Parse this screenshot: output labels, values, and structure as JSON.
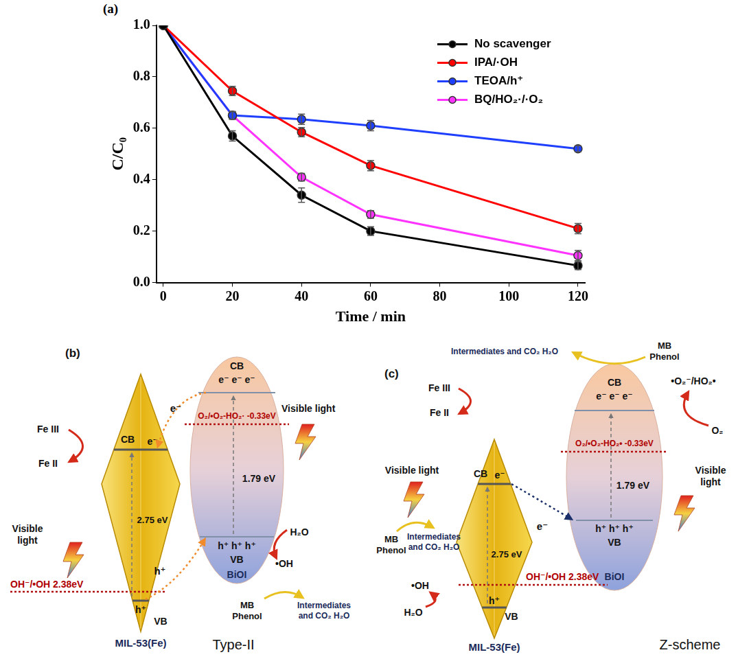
{
  "chart_data": {
    "type": "line",
    "title": "(a)",
    "x_label": "Time / min",
    "y_label": "C/C₀",
    "x": [
      0,
      20,
      40,
      60,
      120
    ],
    "series": [
      {
        "name": "No scavenger",
        "color": "#000000",
        "marker": "circle",
        "values": [
          1.0,
          0.57,
          0.34,
          0.2,
          0.066
        ],
        "errors": [
          0,
          0.02,
          0.028,
          0.017,
          0.016
        ]
      },
      {
        "name": "IPA/·OH",
        "color": "#ff0000",
        "marker": "circle",
        "values": [
          1.0,
          0.745,
          0.585,
          0.455,
          0.21
        ],
        "errors": [
          0,
          0.018,
          0.018,
          0.02,
          0.02
        ]
      },
      {
        "name": "TEOA/h⁺",
        "color": "#1f3fff",
        "marker": "circle",
        "values": [
          1.0,
          0.65,
          0.635,
          0.61,
          0.52
        ],
        "errors": [
          0,
          0.015,
          0.02,
          0.02,
          0.012
        ]
      },
      {
        "name": "BQ/HO₂·/·O₂",
        "color": "#ff33ff",
        "marker": "circle",
        "values": [
          1.0,
          0.65,
          0.41,
          0.265,
          0.105
        ],
        "errors": [
          0,
          0.015,
          0.015,
          0.015,
          0.02
        ]
      }
    ],
    "xlim": [
      -2,
      122
    ],
    "xticks": [
      0,
      20,
      40,
      60,
      80,
      100,
      120
    ],
    "ylim": [
      0,
      1.0
    ],
    "yticks": [
      {
        "value": 0,
        "label": "0.0"
      },
      {
        "value": 0.2,
        "label": "0.2"
      },
      {
        "value": 0.4,
        "label": "0.4"
      },
      {
        "value": 0.6,
        "label": "0.6"
      },
      {
        "value": 0.8,
        "label": "0.8"
      },
      {
        "value": 1.0,
        "label": "1.0"
      }
    ],
    "grid": false,
    "legend": "upper right"
  },
  "diagrams": [
    {
      "label": "(b)",
      "scheme": "Type-II",
      "mil": {
        "name": "MIL-53(Fe)",
        "cb": "CB",
        "cb_carrier": "e⁻",
        "gap": "2.75 eV",
        "vb": "VB",
        "vb_carrier": "h⁺",
        "potential": "OH⁻/•OH 2.38eV"
      },
      "bioi": {
        "name": "BiOI",
        "cb": "CB",
        "cb_carriers": "e⁻ e⁻ e⁻",
        "gap": "1.79 eV",
        "vb": "VB",
        "vb_carriers": "h⁺ h⁺ h⁺",
        "potential": "O₂/•O₂-HO₂· -0.33eV"
      },
      "iron": {
        "from": "Fe III",
        "to": "Fe II"
      },
      "light": [
        "Visible light",
        "Visible light"
      ],
      "transfers": [
        "e⁻",
        "h⁺"
      ],
      "radicals": [
        {
          "from": "H₂O",
          "to": "•OH"
        }
      ],
      "degradation": [
        {
          "from": "MB Phenol",
          "to": "Intermediates and CO₂ H₂O"
        }
      ]
    },
    {
      "label": "(c)",
      "scheme": "Z-scheme",
      "mil": {
        "name": "MIL-53(Fe)",
        "cb": "CB",
        "cb_carrier": "e⁻",
        "gap": "2.75 eV",
        "vb": "VB",
        "vb_carrier": "h⁺",
        "potential": "OH⁻/•OH 2.38eV"
      },
      "bioi": {
        "name": "BiOI",
        "cb": "CB",
        "cb_carriers": "e⁻ e⁻ e⁻",
        "gap": "1.79 eV",
        "vb": "VB",
        "vb_carriers": "h⁺ h⁺ h⁺",
        "potential": "O₂/•O₂-HO₂• -0.33eV"
      },
      "iron": {
        "from": "Fe III",
        "to": "Fe II"
      },
      "light": [
        "Visible light",
        "Visible light"
      ],
      "transfers": [
        "e⁻"
      ],
      "radicals": [
        {
          "from": "O₂",
          "to": "•O₂⁻/HO₂•"
        },
        {
          "from": "H₂O",
          "to": "•OH"
        }
      ],
      "degradation": [
        {
          "from": "MB Phenol",
          "to": "Intermediates and CO₂ H₂O"
        },
        {
          "from": "MB Phenol",
          "to": "Intermediates and CO₂ H₂O"
        }
      ]
    }
  ]
}
